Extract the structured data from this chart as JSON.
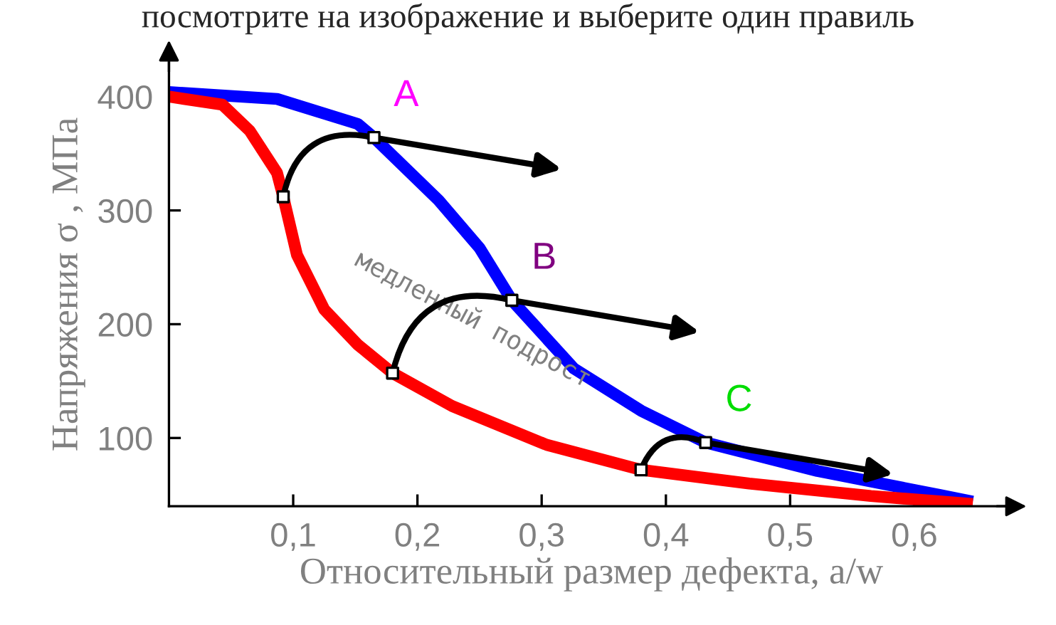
{
  "chart_data": {
    "type": "line",
    "title": "посмотрите на изображение и выберите один правиль",
    "xlabel": "Относительный размер дефекта, a/w",
    "ylabel": "Напряжения σ , МПа",
    "xlim": [
      0,
      0.68
    ],
    "ylim": [
      40,
      430
    ],
    "xticks": [
      {
        "value": 0.1,
        "label": "0,1"
      },
      {
        "value": 0.2,
        "label": "0,2"
      },
      {
        "value": 0.3,
        "label": "0,3"
      },
      {
        "value": 0.4,
        "label": "0,4"
      },
      {
        "value": 0.5,
        "label": "0,5"
      },
      {
        "value": 0.6,
        "label": "0,6"
      }
    ],
    "yticks": [
      100,
      200,
      300,
      400
    ],
    "grid": false,
    "legend": false,
    "series": [
      {
        "color": "#0000ff",
        "x": [
          0,
          0.087,
          0.152,
          0.165,
          0.217,
          0.25,
          0.276,
          0.326,
          0.38,
          0.432,
          0.522,
          0.62,
          0.647
        ],
        "values": [
          404,
          398,
          376,
          364,
          309,
          267,
          221,
          161,
          124,
          96,
          71,
          50,
          44
        ]
      },
      {
        "color": "#ff0000",
        "x": [
          0,
          0.043,
          0.065,
          0.087,
          0.092,
          0.103,
          0.125,
          0.152,
          0.18,
          0.228,
          0.304,
          0.38,
          0.467,
          0.565,
          0.647
        ],
        "values": [
          400,
          393,
          370,
          333,
          312,
          261,
          213,
          182,
          157,
          128,
          94,
          72,
          60,
          49,
          42
        ]
      },
      {
        "type": "scatter",
        "color": "#ffffff",
        "marker": "square",
        "x": [
          0.092,
          0.18,
          0.38,
          0.165,
          0.276,
          0.432
        ],
        "values": [
          312,
          157,
          72,
          364,
          221,
          96
        ]
      }
    ],
    "annotations": [
      {
        "text": "A",
        "x": 0.165,
        "y": 364
      },
      {
        "text": "B",
        "x": 0.276,
        "y": 221
      },
      {
        "text": "C",
        "x": 0.432,
        "y": 96
      },
      "медленный подрост"
    ]
  }
}
